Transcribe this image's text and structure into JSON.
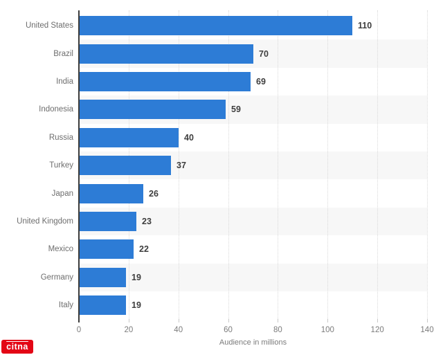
{
  "chart_data": {
    "type": "bar",
    "orientation": "horizontal",
    "categories": [
      "United States",
      "Brazil",
      "India",
      "Indonesia",
      "Russia",
      "Turkey",
      "Japan",
      "United Kingdom",
      "Mexico",
      "Germany",
      "Italy"
    ],
    "values": [
      110,
      70,
      69,
      59,
      40,
      37,
      26,
      23,
      22,
      19,
      19
    ],
    "title": "",
    "xlabel": "Audience in millions",
    "ylabel": "",
    "xlim": [
      0,
      140
    ],
    "x_ticks": [
      0,
      20,
      40,
      60,
      80,
      100,
      120,
      140
    ],
    "grid": "vertical-dotted",
    "legend": "none",
    "colors": {
      "bar": "#2d7cd6",
      "row_stripe": "#f7f7f7",
      "gridline": "#d9d9d9",
      "axis_line": "#3c3c3c",
      "category_label": "#6d6d6d",
      "value_label": "#3e3e3e",
      "tick_label": "#7b7b7b"
    }
  },
  "axis": {
    "xlabel": "Audience in millions"
  },
  "watermark": {
    "text": "citna",
    "background": "#e30615"
  }
}
